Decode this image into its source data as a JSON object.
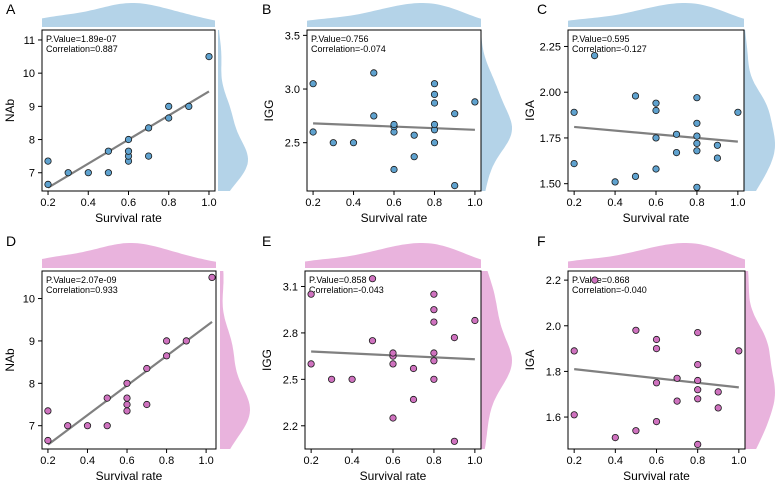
{
  "colors": {
    "blue_fill": "#b4d3e8",
    "blue_point": "#5fa2cf",
    "pink_fill": "#e9b3dd",
    "pink_point": "#cf72bf",
    "fit_line": "#808080",
    "frame": "#000000"
  },
  "chart_data": [
    {
      "panel": "A",
      "type": "scatter",
      "color": "blue",
      "xlabel": "Survival rate",
      "ylabel": "NAb",
      "xlim": [
        0.17,
        1.03
      ],
      "ylim": [
        6.45,
        11.3
      ],
      "xticks": [
        {
          "v": 0.2,
          "t": "0.2"
        },
        {
          "v": 0.4,
          "t": "0.4"
        },
        {
          "v": 0.6,
          "t": "0.6"
        },
        {
          "v": 0.8,
          "t": "0.8"
        },
        {
          "v": 1.0,
          "t": "1.0"
        }
      ],
      "yticks": [
        {
          "v": 7,
          "t": "7"
        },
        {
          "v": 8,
          "t": "8"
        },
        {
          "v": 9,
          "t": "9"
        },
        {
          "v": 10,
          "t": "10"
        },
        {
          "v": 11,
          "t": "11"
        }
      ],
      "pvalue": "P.Value=1.89e-07",
      "correlation": "Correlation=0.887",
      "fit": [
        [
          0.2,
          6.55
        ],
        [
          1.0,
          9.45
        ]
      ],
      "x": [
        0.2,
        0.2,
        0.3,
        0.4,
        0.5,
        0.5,
        0.6,
        0.6,
        0.6,
        0.6,
        0.7,
        0.7,
        0.8,
        0.8,
        0.9,
        1.0
      ],
      "y": [
        6.65,
        7.35,
        7.0,
        7.0,
        7.0,
        7.65,
        7.35,
        7.5,
        7.65,
        8.0,
        7.5,
        8.35,
        8.65,
        9.0,
        9.0,
        10.5
      ]
    },
    {
      "panel": "B",
      "type": "scatter",
      "color": "blue",
      "xlabel": "Survival rate",
      "ylabel": "IGG",
      "xlim": [
        0.17,
        1.03
      ],
      "ylim": [
        2.05,
        3.55
      ],
      "xticks": [
        {
          "v": 0.2,
          "t": "0.2"
        },
        {
          "v": 0.4,
          "t": "0.4"
        },
        {
          "v": 0.6,
          "t": "0.6"
        },
        {
          "v": 0.8,
          "t": "0.8"
        },
        {
          "v": 1.0,
          "t": "1.0"
        }
      ],
      "yticks": [
        {
          "v": 2.5,
          "t": "2.5"
        },
        {
          "v": 3.0,
          "t": "3.0"
        },
        {
          "v": 3.5,
          "t": "3.5"
        }
      ],
      "pvalue": "P.Value=0.756",
      "correlation": "Correlation=-0.074",
      "fit": [
        [
          0.2,
          2.68
        ],
        [
          1.0,
          2.62
        ]
      ],
      "x": [
        0.2,
        0.2,
        0.3,
        0.4,
        0.5,
        0.5,
        0.6,
        0.6,
        0.6,
        0.6,
        0.7,
        0.7,
        0.8,
        0.8,
        0.8,
        0.8,
        0.8,
        0.8,
        0.9,
        0.9,
        1.0
      ],
      "y": [
        2.6,
        3.05,
        2.5,
        2.5,
        2.75,
        3.15,
        2.25,
        2.6,
        2.65,
        2.67,
        2.37,
        2.57,
        2.5,
        2.62,
        2.67,
        2.87,
        2.95,
        3.05,
        2.1,
        2.77,
        2.88
      ]
    },
    {
      "panel": "C",
      "type": "scatter",
      "color": "blue",
      "xlabel": "Survival rate",
      "ylabel": "IGA",
      "xlim": [
        0.17,
        1.03
      ],
      "ylim": [
        1.46,
        2.34
      ],
      "xticks": [
        {
          "v": 0.2,
          "t": "0.2"
        },
        {
          "v": 0.4,
          "t": "0.4"
        },
        {
          "v": 0.6,
          "t": "0.6"
        },
        {
          "v": 0.8,
          "t": "0.8"
        },
        {
          "v": 1.0,
          "t": "1.0"
        }
      ],
      "yticks": [
        {
          "v": 1.5,
          "t": "1.50"
        },
        {
          "v": 1.75,
          "t": "1.75"
        },
        {
          "v": 2.0,
          "t": "2.00"
        },
        {
          "v": 2.25,
          "t": "2.25"
        }
      ],
      "pvalue": "P.Value=0.595",
      "correlation": "Correlation=-0.127",
      "fit": [
        [
          0.2,
          1.81
        ],
        [
          1.0,
          1.73
        ]
      ],
      "x": [
        0.2,
        0.2,
        0.3,
        0.4,
        0.5,
        0.5,
        0.6,
        0.6,
        0.6,
        0.6,
        0.7,
        0.7,
        0.8,
        0.8,
        0.8,
        0.8,
        0.8,
        0.8,
        0.9,
        0.9,
        1.0
      ],
      "y": [
        1.61,
        1.89,
        2.2,
        1.51,
        1.54,
        1.98,
        1.58,
        1.75,
        1.9,
        1.94,
        1.67,
        1.77,
        1.48,
        1.68,
        1.72,
        1.76,
        1.83,
        1.97,
        1.64,
        1.71,
        1.89
      ]
    },
    {
      "panel": "D",
      "type": "scatter",
      "color": "pink",
      "xlabel": "Survival rate",
      "ylabel": "NAb",
      "xlim": [
        0.17,
        1.05
      ],
      "ylim": [
        6.45,
        10.65
      ],
      "xticks": [
        {
          "v": 0.2,
          "t": "0.2"
        },
        {
          "v": 0.4,
          "t": "0.4"
        },
        {
          "v": 0.6,
          "t": "0.6"
        },
        {
          "v": 0.8,
          "t": "0.8"
        },
        {
          "v": 1.0,
          "t": "1.0"
        }
      ],
      "yticks": [
        {
          "v": 7,
          "t": "7"
        },
        {
          "v": 8,
          "t": "8"
        },
        {
          "v": 9,
          "t": "9"
        },
        {
          "v": 10,
          "t": "10"
        }
      ],
      "pvalue": "P.Value=2.07e-09",
      "correlation": "Correlation=0.933",
      "fit": [
        [
          0.2,
          6.55
        ],
        [
          1.03,
          9.45
        ]
      ],
      "x": [
        0.2,
        0.2,
        0.3,
        0.4,
        0.5,
        0.5,
        0.6,
        0.6,
        0.6,
        0.6,
        0.7,
        0.7,
        0.8,
        0.8,
        0.9,
        1.03
      ],
      "y": [
        6.65,
        7.35,
        7.0,
        7.0,
        7.0,
        7.65,
        7.35,
        7.5,
        7.65,
        8.0,
        7.5,
        8.35,
        8.65,
        9.0,
        9.0,
        10.5
      ]
    },
    {
      "panel": "E",
      "type": "scatter",
      "color": "pink",
      "xlabel": "Survival rate",
      "ylabel": "IGG",
      "xlim": [
        0.17,
        1.03
      ],
      "ylim": [
        2.05,
        3.2
      ],
      "xticks": [
        {
          "v": 0.2,
          "t": "0.2"
        },
        {
          "v": 0.4,
          "t": "0.4"
        },
        {
          "v": 0.6,
          "t": "0.6"
        },
        {
          "v": 0.8,
          "t": "0.8"
        },
        {
          "v": 1.0,
          "t": "1.0"
        }
      ],
      "yticks": [
        {
          "v": 2.2,
          "t": "2.2"
        },
        {
          "v": 2.5,
          "t": "2.5"
        },
        {
          "v": 2.8,
          "t": "2.8"
        },
        {
          "v": 3.1,
          "t": "3.1"
        }
      ],
      "pvalue": "P.Value=0.858",
      "correlation": "Correlation=-0.043",
      "fit": [
        [
          0.2,
          2.68
        ],
        [
          1.0,
          2.63
        ]
      ],
      "x": [
        0.2,
        0.2,
        0.3,
        0.4,
        0.5,
        0.5,
        0.6,
        0.6,
        0.6,
        0.6,
        0.7,
        0.7,
        0.8,
        0.8,
        0.8,
        0.8,
        0.8,
        0.8,
        0.9,
        0.9,
        1.0
      ],
      "y": [
        2.6,
        3.05,
        2.5,
        2.5,
        2.75,
        3.15,
        2.25,
        2.6,
        2.65,
        2.67,
        2.37,
        2.57,
        2.5,
        2.62,
        2.67,
        2.87,
        2.95,
        3.05,
        2.1,
        2.77,
        2.88
      ]
    },
    {
      "panel": "F",
      "type": "scatter",
      "color": "pink",
      "xlabel": "Survival rate",
      "ylabel": "IGA",
      "xlim": [
        0.17,
        1.03
      ],
      "ylim": [
        1.46,
        2.24
      ],
      "xticks": [
        {
          "v": 0.2,
          "t": "0.2"
        },
        {
          "v": 0.4,
          "t": "0.4"
        },
        {
          "v": 0.6,
          "t": "0.6"
        },
        {
          "v": 0.8,
          "t": "0.8"
        },
        {
          "v": 1.0,
          "t": "1.0"
        }
      ],
      "yticks": [
        {
          "v": 1.6,
          "t": "1.6"
        },
        {
          "v": 1.8,
          "t": "1.8"
        },
        {
          "v": 2.0,
          "t": "2.0"
        },
        {
          "v": 2.2,
          "t": "2.2"
        }
      ],
      "pvalue": "P.Value=0.868",
      "correlation": "Correlation=-0.040",
      "fit": [
        [
          0.2,
          1.81
        ],
        [
          1.0,
          1.73
        ]
      ],
      "x": [
        0.2,
        0.2,
        0.3,
        0.4,
        0.5,
        0.5,
        0.6,
        0.6,
        0.6,
        0.6,
        0.7,
        0.7,
        0.8,
        0.8,
        0.8,
        0.8,
        0.8,
        0.8,
        0.9,
        0.9,
        1.0
      ],
      "y": [
        1.61,
        1.89,
        2.2,
        1.51,
        1.54,
        1.98,
        1.58,
        1.75,
        1.9,
        1.94,
        1.67,
        1.77,
        1.48,
        1.68,
        1.72,
        1.76,
        1.83,
        1.97,
        1.64,
        1.71,
        1.89
      ]
    }
  ]
}
